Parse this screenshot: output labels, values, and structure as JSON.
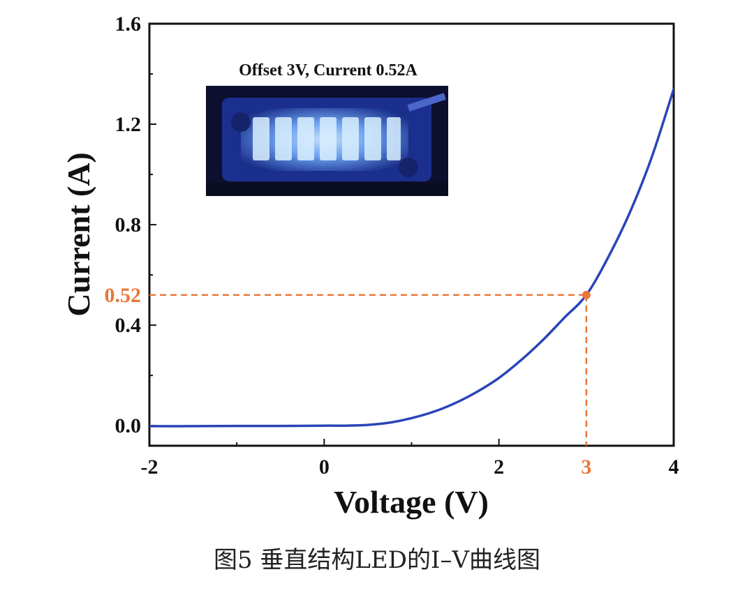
{
  "chart_data": {
    "type": "line",
    "xlabel": "Voltage (V)",
    "ylabel": "Current (A)",
    "xlim": [
      -2,
      4
    ],
    "ylim": [
      -0.08,
      1.6
    ],
    "x_ticks": [
      -2,
      0,
      2,
      4
    ],
    "x_tick_labels": [
      "-2",
      "0",
      "2",
      "4"
    ],
    "y_ticks": [
      0.0,
      0.4,
      0.8,
      1.2,
      1.6
    ],
    "y_tick_labels": [
      "0.0",
      "0.4",
      "0.8",
      "1.2",
      "1.6"
    ],
    "grid": false,
    "series": [
      {
        "color": "#2a44b8",
        "x": [
          -2,
          -1.5,
          -1,
          -0.5,
          0,
          0.25,
          0.5,
          0.75,
          1.0,
          1.25,
          1.5,
          1.75,
          2.0,
          2.25,
          2.5,
          2.75,
          3.0,
          3.25,
          3.5,
          3.75,
          4.0
        ],
        "y": [
          -0.002,
          -0.002,
          -0.001,
          -0.001,
          0.0,
          0.0,
          0.003,
          0.012,
          0.03,
          0.055,
          0.09,
          0.135,
          0.19,
          0.26,
          0.34,
          0.43,
          0.52,
          0.67,
          0.85,
          1.07,
          1.34
        ]
      }
    ],
    "highlight": {
      "x": 3,
      "y": 0.52,
      "x_label": "3",
      "y_label": "0.52",
      "color": "#e8773a"
    },
    "inset": {
      "title": "Offset 3V, Current 0.52A",
      "image": "blue-led-array-photo"
    }
  },
  "caption": "图5    垂直结构LED的I–V曲线图"
}
